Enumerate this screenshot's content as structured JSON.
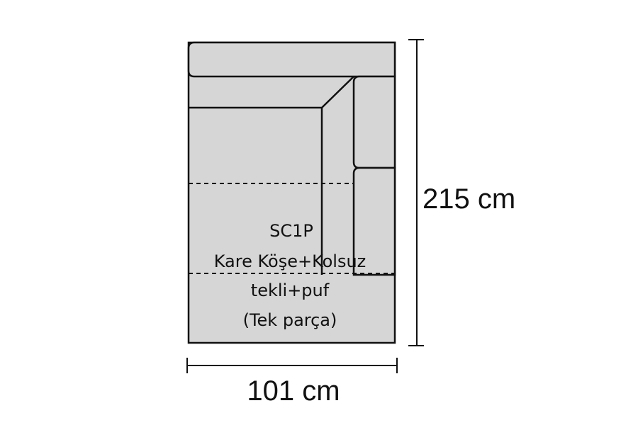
{
  "diagram": {
    "code": "SC1P",
    "name": "Kare Köşe+Kolsuz",
    "line3": "tekli+puf",
    "line4": "(Tek parça)",
    "height_label": "215 cm",
    "width_label": "101 cm",
    "colors": {
      "fill": "#d6d6d6",
      "stroke": "#111111",
      "text": "#111111"
    }
  }
}
